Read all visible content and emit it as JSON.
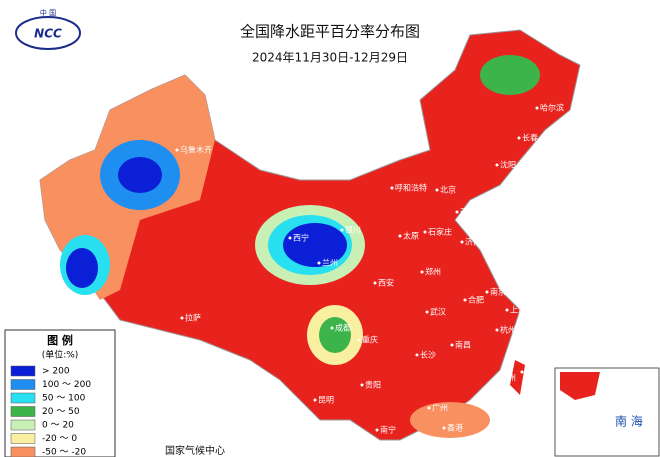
{
  "logo": {
    "top": "中 国",
    "text": "NCC"
  },
  "title": "全国降水距平百分率分布图",
  "subtitle": "2024年11月30日-12月29日",
  "legend": {
    "title": "图 例",
    "unit": "(单位:%)",
    "entries": [
      {
        "label": "> 200",
        "color": "#0a1fd6"
      },
      {
        "label": "100 ～ 200",
        "color": "#1e8ef0"
      },
      {
        "label": "50 ～ 100",
        "color": "#28e0f0"
      },
      {
        "label": "20 ～ 50",
        "color": "#3cb44a"
      },
      {
        "label": "0 ～ 20",
        "color": "#c8f0b4"
      },
      {
        "label": "-20 ～ 0",
        "color": "#f8f0a0"
      },
      {
        "label": "-50 ～ -20",
        "color": "#f89060"
      }
    ]
  },
  "cities": [
    "乌鲁木齐",
    "哈尔滨",
    "长春",
    "沈阳",
    "呼和浩特",
    "北京",
    "天津",
    "石家庄",
    "太原",
    "济南",
    "银川",
    "西宁",
    "兰州",
    "西安",
    "郑州",
    "拉萨",
    "成都",
    "重庆",
    "武汉",
    "合肥",
    "南京",
    "上海",
    "杭州",
    "长沙",
    "南昌",
    "贵阳",
    "昆明",
    "福州",
    "台北",
    "南宁",
    "广州",
    "香港"
  ],
  "inset_label": "南 海",
  "source": "国家气候中心"
}
